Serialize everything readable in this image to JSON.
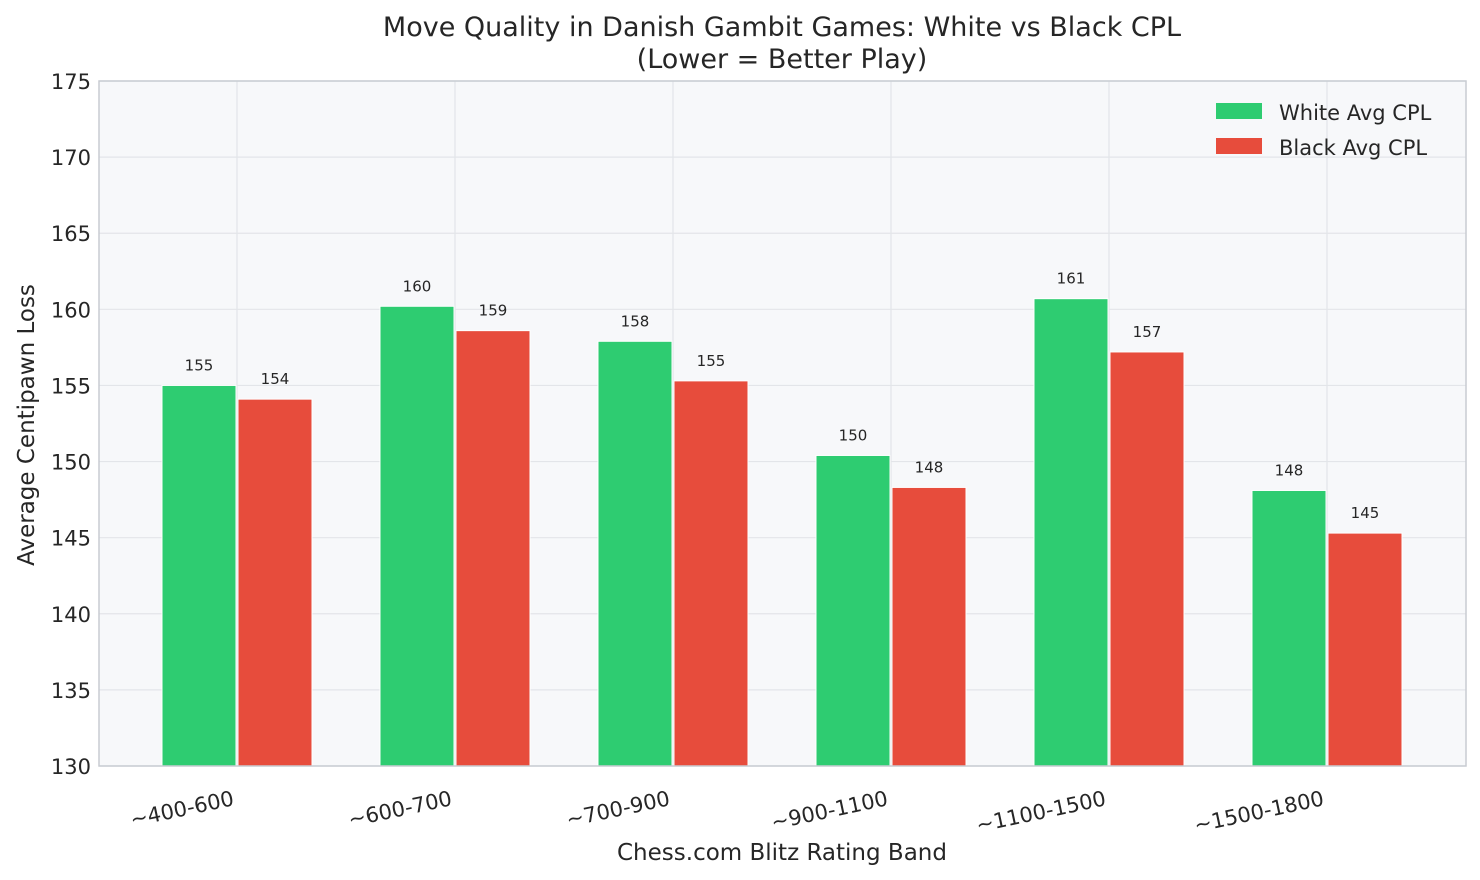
{
  "chart_data": {
    "type": "bar",
    "title": "Move Quality in Danish Gambit Games: White vs Black CPL",
    "subtitle": "(Lower = Better Play)",
    "xlabel": "Chess.com Blitz Rating Band",
    "ylabel": "Average Centipawn Loss",
    "categories": [
      "~400-600",
      "~600-700",
      "~700-900",
      "~900-1100",
      "~1100-1500",
      "~1500-1800"
    ],
    "series": [
      {
        "name": "White Avg CPL",
        "color": "#2ecc71",
        "values": [
          155.0,
          160.2,
          157.9,
          150.4,
          160.7,
          148.1
        ],
        "labels": [
          "155",
          "160",
          "158",
          "150",
          "161",
          "148"
        ]
      },
      {
        "name": "Black Avg CPL",
        "color": "#e74c3c",
        "values": [
          154.1,
          158.6,
          155.3,
          148.3,
          157.2,
          145.3
        ],
        "labels": [
          "154",
          "159",
          "155",
          "148",
          "157",
          "145"
        ]
      }
    ],
    "ylim": [
      130,
      175
    ],
    "yticks": [
      "130",
      "135",
      "140",
      "145",
      "150",
      "155",
      "160",
      "165",
      "170",
      "175"
    ],
    "grid": true,
    "legend_position": "top-right",
    "plot_background": "#f7f8fa"
  }
}
